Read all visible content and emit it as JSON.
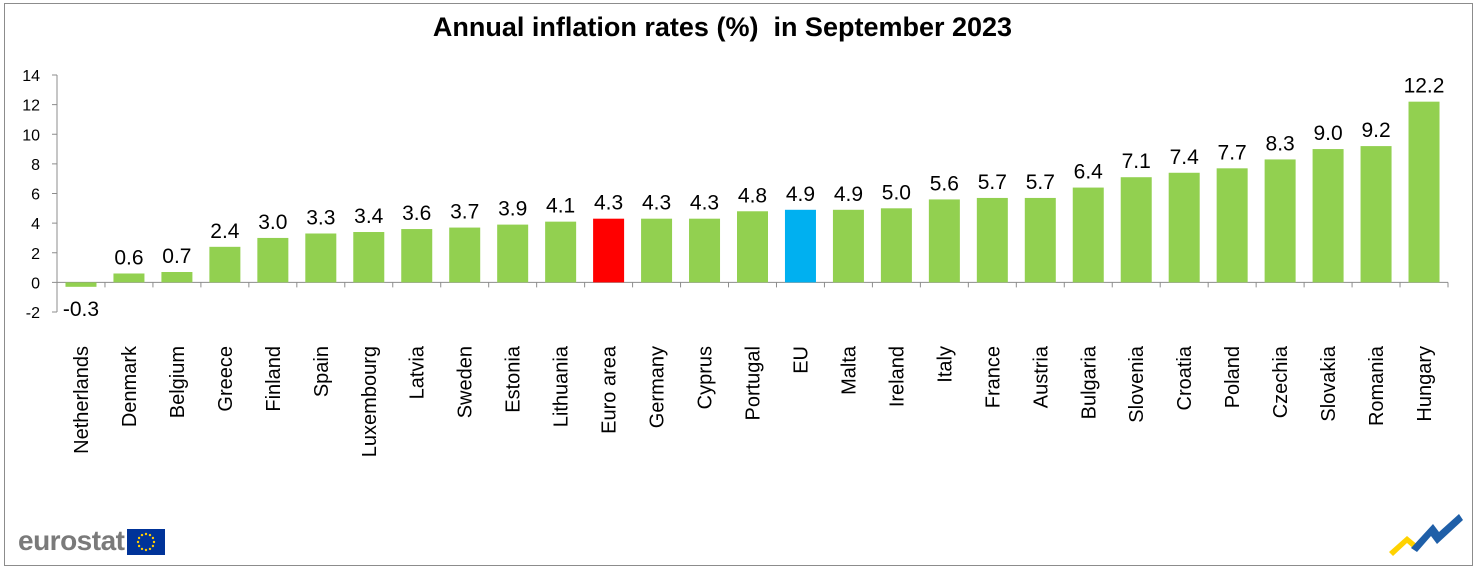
{
  "chart_data": {
    "type": "bar",
    "title": "Annual inflation rates (%)  in September 2023",
    "xlabel": "",
    "ylabel": "",
    "ylim": [
      -2,
      14
    ],
    "yticks": [
      14,
      12,
      10,
      8,
      6,
      4,
      2,
      0,
      -2
    ],
    "grid": false,
    "legend": "none",
    "categories": [
      "Netherlands",
      "Denmark",
      "Belgium",
      "Greece",
      "Finland",
      "Spain",
      "Luxembourg",
      "Latvia",
      "Sweden",
      "Estonia",
      "Lithuania",
      "Euro area",
      "Germany",
      "Cyprus",
      "Portugal",
      "EU",
      "Malta",
      "Ireland",
      "Italy",
      "France",
      "Austria",
      "Bulgaria",
      "Slovenia",
      "Croatia",
      "Poland",
      "Czechia",
      "Slovakia",
      "Romania",
      "Hungary"
    ],
    "values": [
      -0.3,
      0.6,
      0.7,
      2.4,
      3.0,
      3.3,
      3.4,
      3.6,
      3.7,
      3.9,
      4.1,
      4.3,
      4.3,
      4.3,
      4.8,
      4.9,
      4.9,
      5.0,
      5.6,
      5.7,
      5.7,
      6.4,
      7.1,
      7.4,
      7.7,
      8.3,
      9.0,
      9.2,
      12.2
    ],
    "value_labels": [
      "-0.3",
      "0.6",
      "0.7",
      "2.4",
      "3.0",
      "3.3",
      "3.4",
      "3.6",
      "3.7",
      "3.9",
      "4.1",
      "4.3",
      "4.3",
      "4.3",
      "4.8",
      "4.9",
      "4.9",
      "5.0",
      "5.6",
      "5.7",
      "5.7",
      "6.4",
      "7.1",
      "7.4",
      "7.7",
      "8.3",
      "9.0",
      "9.2",
      "12.2"
    ],
    "colors": {
      "default": "#92d050",
      "Euro area": "#ff0000",
      "EU": "#00b0f0"
    }
  },
  "branding": {
    "logo_text": "eurostat",
    "flag_color": "#003399",
    "star_color": "#ffcc00",
    "swoosh_blue": "#1f5fa8",
    "swoosh_yellow": "#ffd200"
  }
}
